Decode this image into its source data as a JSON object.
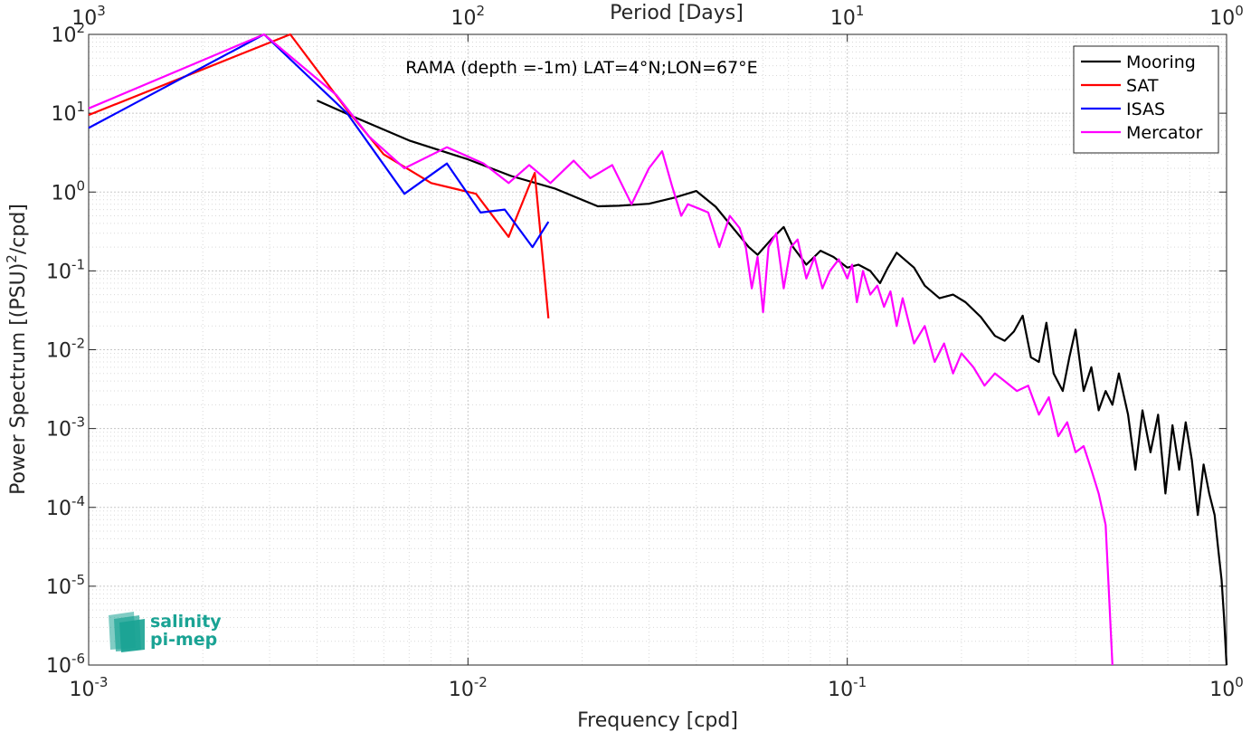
{
  "chart_data": {
    "type": "line",
    "title": "RAMA (depth =-1m) LAT=4°N;LON=67°E",
    "xlabel": "Frequency [cpd]",
    "ylabel": "Power Spectrum [(PSU)²/cpd]",
    "ylabel_pre": "Power Spectrum [(PSU)",
    "ylabel_sup": "2",
    "ylabel_post": "/cpd]",
    "top_xlabel": "Period [Days]",
    "xscale": "log",
    "yscale": "log",
    "xlim": [
      0.001,
      1
    ],
    "ylim": [
      1e-06,
      100
    ],
    "grid": true,
    "legend_position": "top-right",
    "x_ticks": [
      {
        "base": "10",
        "exp": "-3",
        "value": 0.001
      },
      {
        "base": "10",
        "exp": "-2",
        "value": 0.01
      },
      {
        "base": "10",
        "exp": "-1",
        "value": 0.1
      },
      {
        "base": "10",
        "exp": "0",
        "value": 1
      }
    ],
    "top_ticks": [
      {
        "base": "10",
        "exp": "3",
        "value": 0.001
      },
      {
        "base": "10",
        "exp": "2",
        "value": 0.01
      },
      {
        "base": "10",
        "exp": "1",
        "value": 0.1
      },
      {
        "base": "10",
        "exp": "0",
        "value": 1
      }
    ],
    "y_ticks": [
      {
        "base": "10",
        "exp": "2",
        "value": 100
      },
      {
        "base": "10",
        "exp": "1",
        "value": 10
      },
      {
        "base": "10",
        "exp": "0",
        "value": 1
      },
      {
        "base": "10",
        "exp": "-1",
        "value": 0.1
      },
      {
        "base": "10",
        "exp": "-2",
        "value": 0.01
      },
      {
        "base": "10",
        "exp": "-3",
        "value": 0.001
      },
      {
        "base": "10",
        "exp": "-4",
        "value": 0.0001
      },
      {
        "base": "10",
        "exp": "-5",
        "value": 1e-05
      },
      {
        "base": "10",
        "exp": "-6",
        "value": 1e-06
      }
    ],
    "series": [
      {
        "name": "Mooring",
        "color": "#000000",
        "points": [
          [
            0.004,
            14.5
          ],
          [
            0.005,
            9
          ],
          [
            0.007,
            4.5
          ],
          [
            0.01,
            2.6
          ],
          [
            0.013,
            1.6
          ],
          [
            0.017,
            1.1
          ],
          [
            0.022,
            0.66
          ],
          [
            0.025,
            0.67
          ],
          [
            0.03,
            0.71
          ],
          [
            0.035,
            0.85
          ],
          [
            0.04,
            1.03
          ],
          [
            0.045,
            0.65
          ],
          [
            0.05,
            0.35
          ],
          [
            0.055,
            0.2
          ],
          [
            0.058,
            0.16
          ],
          [
            0.063,
            0.25
          ],
          [
            0.068,
            0.36
          ],
          [
            0.072,
            0.2
          ],
          [
            0.078,
            0.12
          ],
          [
            0.085,
            0.18
          ],
          [
            0.092,
            0.15
          ],
          [
            0.1,
            0.11
          ],
          [
            0.107,
            0.12
          ],
          [
            0.115,
            0.1
          ],
          [
            0.122,
            0.07
          ],
          [
            0.128,
            0.11
          ],
          [
            0.135,
            0.17
          ],
          [
            0.15,
            0.11
          ],
          [
            0.16,
            0.065
          ],
          [
            0.175,
            0.045
          ],
          [
            0.19,
            0.05
          ],
          [
            0.205,
            0.04
          ],
          [
            0.225,
            0.026
          ],
          [
            0.245,
            0.015
          ],
          [
            0.26,
            0.013
          ],
          [
            0.275,
            0.017
          ],
          [
            0.29,
            0.027
          ],
          [
            0.305,
            0.008
          ],
          [
            0.32,
            0.007
          ],
          [
            0.335,
            0.022
          ],
          [
            0.35,
            0.005
          ],
          [
            0.37,
            0.003
          ],
          [
            0.385,
            0.008
          ],
          [
            0.4,
            0.018
          ],
          [
            0.42,
            0.003
          ],
          [
            0.44,
            0.006
          ],
          [
            0.46,
            0.0017
          ],
          [
            0.48,
            0.003
          ],
          [
            0.5,
            0.002
          ],
          [
            0.52,
            0.005
          ],
          [
            0.55,
            0.0015
          ],
          [
            0.575,
            0.0003
          ],
          [
            0.6,
            0.0017
          ],
          [
            0.63,
            0.0005
          ],
          [
            0.66,
            0.0015
          ],
          [
            0.69,
            0.00015
          ],
          [
            0.72,
            0.0011
          ],
          [
            0.75,
            0.0003
          ],
          [
            0.78,
            0.0012
          ],
          [
            0.81,
            0.0004
          ],
          [
            0.84,
            8e-05
          ],
          [
            0.87,
            0.00035
          ],
          [
            0.9,
            0.00015
          ],
          [
            0.93,
            8e-05
          ],
          [
            0.95,
            3e-05
          ],
          [
            0.97,
            1.2e-05
          ],
          [
            0.985,
            4e-06
          ],
          [
            1,
            1e-06
          ]
        ]
      },
      {
        "name": "SAT",
        "color": "#ff0000",
        "points": [
          [
            0.001,
            9.5
          ],
          [
            0.0034,
            100
          ],
          [
            0.0048,
            11
          ],
          [
            0.006,
            3
          ],
          [
            0.008,
            1.3
          ],
          [
            0.0105,
            0.95
          ],
          [
            0.0128,
            0.27
          ],
          [
            0.0145,
            1.2
          ],
          [
            0.015,
            1.75
          ],
          [
            0.0163,
            0.025
          ]
        ]
      },
      {
        "name": "ISAS",
        "color": "#0000ff",
        "points": [
          [
            0.001,
            6.5
          ],
          [
            0.0029,
            100
          ],
          [
            0.0048,
            10
          ],
          [
            0.0068,
            0.95
          ],
          [
            0.0088,
            2.3
          ],
          [
            0.0108,
            0.55
          ],
          [
            0.0125,
            0.6
          ],
          [
            0.0148,
            0.2
          ],
          [
            0.0163,
            0.42
          ]
        ]
      },
      {
        "name": "Mercator",
        "color": "#ff00ff",
        "points": [
          [
            0.001,
            11.5
          ],
          [
            0.0029,
            100
          ],
          [
            0.0045,
            17
          ],
          [
            0.0055,
            5
          ],
          [
            0.0068,
            2
          ],
          [
            0.0088,
            3.7
          ],
          [
            0.011,
            2.3
          ],
          [
            0.0128,
            1.3
          ],
          [
            0.0145,
            2.2
          ],
          [
            0.0165,
            1.3
          ],
          [
            0.019,
            2.5
          ],
          [
            0.021,
            1.5
          ],
          [
            0.024,
            2.2
          ],
          [
            0.027,
            0.7
          ],
          [
            0.03,
            2
          ],
          [
            0.0325,
            3.3
          ],
          [
            0.0345,
            1.2
          ],
          [
            0.0365,
            0.5
          ],
          [
            0.038,
            0.7
          ],
          [
            0.0405,
            0.62
          ],
          [
            0.043,
            0.55
          ],
          [
            0.046,
            0.2
          ],
          [
            0.049,
            0.5
          ],
          [
            0.052,
            0.35
          ],
          [
            0.054,
            0.2
          ],
          [
            0.056,
            0.06
          ],
          [
            0.058,
            0.15
          ],
          [
            0.06,
            0.03
          ],
          [
            0.062,
            0.2
          ],
          [
            0.065,
            0.3
          ],
          [
            0.068,
            0.06
          ],
          [
            0.071,
            0.2
          ],
          [
            0.074,
            0.25
          ],
          [
            0.078,
            0.08
          ],
          [
            0.082,
            0.15
          ],
          [
            0.086,
            0.06
          ],
          [
            0.09,
            0.1
          ],
          [
            0.095,
            0.14
          ],
          [
            0.1,
            0.08
          ],
          [
            0.103,
            0.12
          ],
          [
            0.106,
            0.04
          ],
          [
            0.11,
            0.1
          ],
          [
            0.115,
            0.05
          ],
          [
            0.12,
            0.065
          ],
          [
            0.125,
            0.035
          ],
          [
            0.13,
            0.055
          ],
          [
            0.135,
            0.02
          ],
          [
            0.14,
            0.045
          ],
          [
            0.15,
            0.012
          ],
          [
            0.16,
            0.02
          ],
          [
            0.17,
            0.007
          ],
          [
            0.18,
            0.012
          ],
          [
            0.19,
            0.005
          ],
          [
            0.2,
            0.009
          ],
          [
            0.215,
            0.006
          ],
          [
            0.23,
            0.0035
          ],
          [
            0.245,
            0.005
          ],
          [
            0.26,
            0.004
          ],
          [
            0.28,
            0.003
          ],
          [
            0.3,
            0.0035
          ],
          [
            0.32,
            0.0015
          ],
          [
            0.34,
            0.0025
          ],
          [
            0.36,
            0.0008
          ],
          [
            0.38,
            0.0012
          ],
          [
            0.4,
            0.0005
          ],
          [
            0.42,
            0.0006
          ],
          [
            0.44,
            0.0003
          ],
          [
            0.46,
            0.00015
          ],
          [
            0.48,
            6e-05
          ],
          [
            0.5,
            1e-06
          ]
        ]
      }
    ]
  },
  "logo": {
    "line1": "salinity",
    "line2": "pi-mep"
  }
}
